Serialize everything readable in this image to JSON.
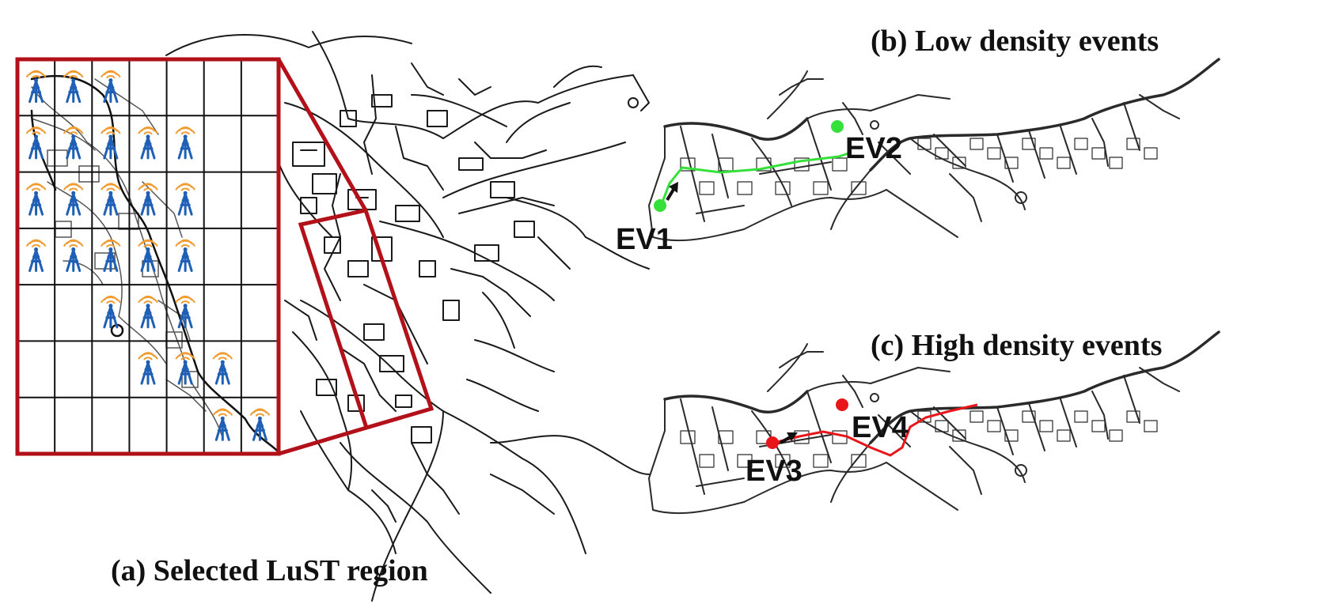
{
  "captions": {
    "a": "(a) Selected LuST region",
    "b": "(b) Low density events",
    "c": "(c) High density events"
  },
  "events": {
    "ev1": "EV1",
    "ev2": "EV2",
    "ev3": "EV3",
    "ev4": "EV4"
  },
  "colors": {
    "region_frame": "#b3111a",
    "road": "#1a1a1a",
    "low_density_route": "#35e03a",
    "high_density_route": "#e8161b",
    "antenna_wave": "#f29a2e",
    "antenna_mast": "#1f5fb5"
  },
  "icons": {
    "antenna": "rsu-antenna-icon",
    "direction": "arrow-icon"
  },
  "grid": {
    "rows": 7,
    "cols": 7
  }
}
